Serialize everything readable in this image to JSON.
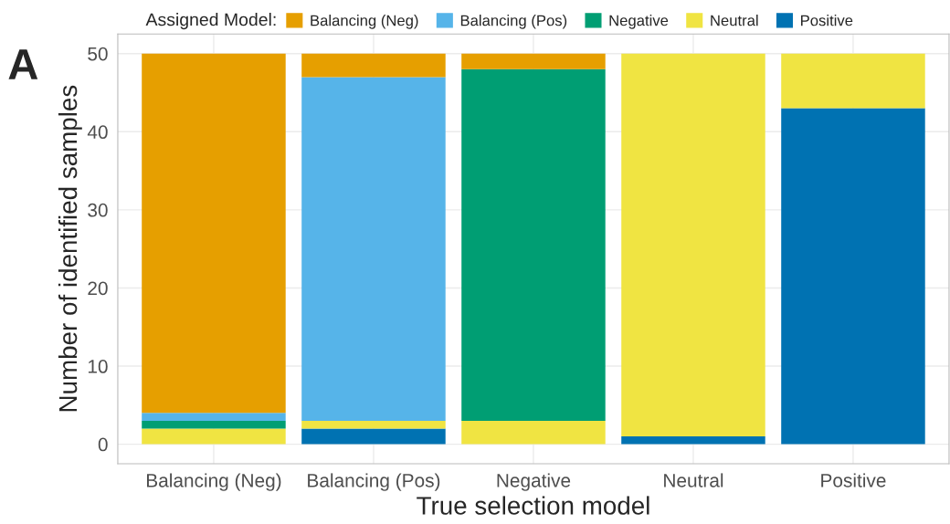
{
  "chart_data": {
    "type": "bar",
    "stacked": true,
    "xlabel": "True selection model",
    "ylabel": "Number of identified samples",
    "legend_title": "Assigned Model:",
    "annotations": [
      "A"
    ],
    "categories": [
      "Balancing (Neg)",
      "Balancing (Pos)",
      "Negative",
      "Neutral",
      "Positive"
    ],
    "series": [
      {
        "name": "Positive",
        "color": "#0072b2",
        "values": [
          0,
          2,
          0,
          1,
          43
        ]
      },
      {
        "name": "Neutral",
        "color": "#f0e442",
        "values": [
          2,
          1,
          3,
          49,
          7
        ]
      },
      {
        "name": "Negative",
        "color": "#009e73",
        "values": [
          1,
          0,
          45,
          0,
          0
        ]
      },
      {
        "name": "Balancing (Pos)",
        "color": "#56b4e9",
        "values": [
          1,
          44,
          0,
          0,
          0
        ]
      },
      {
        "name": "Balancing (Neg)",
        "color": "#e69f00",
        "values": [
          46,
          3,
          2,
          0,
          0
        ]
      }
    ],
    "ylim": [
      -2.5,
      52.5
    ],
    "yticks": [
      0,
      10,
      20,
      30,
      40,
      50
    ],
    "grid": true,
    "legend": "top"
  }
}
